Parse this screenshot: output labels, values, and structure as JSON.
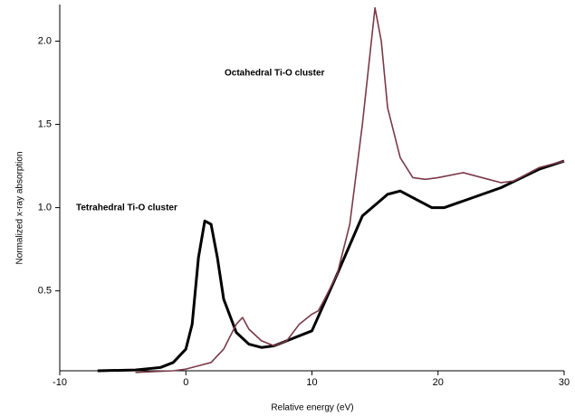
{
  "chart_data": {
    "type": "line",
    "x_label": "Relative energy (eV)",
    "y_label": "Normalized x-ray absorption",
    "annotations": [
      "Octahedral Ti-O cluster",
      "Tetrahedral Ti-O cluster"
    ],
    "xlim": [
      -10,
      30
    ],
    "xticks": [
      -10,
      0,
      10,
      20,
      30
    ],
    "ylim": [
      0.02,
      2.22
    ],
    "yticks": [
      0.5,
      {
        "value": 1,
        "label": "1.0"
      },
      1.5,
      {
        "value": 2,
        "label": "2.0"
      }
    ],
    "series": [
      {
        "color": "#000000",
        "x": [
          -7,
          -4,
          -2,
          -1,
          0,
          0.5,
          1,
          1.5,
          2,
          2.5,
          3,
          4,
          5,
          6,
          7,
          8,
          10,
          12,
          14,
          16,
          17,
          18,
          19.5,
          20.5,
          22,
          25,
          28,
          30
        ],
        "values": [
          0.02,
          0.025,
          0.04,
          0.07,
          0.15,
          0.3,
          0.7,
          0.92,
          0.9,
          0.7,
          0.45,
          0.25,
          0.18,
          0.16,
          0.17,
          0.2,
          0.26,
          0.6,
          0.95,
          1.08,
          1.1,
          1.06,
          1.0,
          1.0,
          1.04,
          1.12,
          1.23,
          1.28
        ]
      },
      {
        "color": "#7a3a4a",
        "x": [
          -4,
          -1,
          0,
          1,
          2,
          3,
          4,
          4.5,
          5,
          6,
          7,
          8,
          9,
          10,
          10.5,
          11,
          12,
          13,
          14,
          15,
          15.5,
          16,
          17,
          18,
          19,
          20,
          22,
          24,
          25,
          26,
          28,
          30
        ],
        "values": [
          0.01,
          0.02,
          0.03,
          0.05,
          0.07,
          0.15,
          0.3,
          0.34,
          0.27,
          0.2,
          0.17,
          0.2,
          0.3,
          0.36,
          0.38,
          0.45,
          0.6,
          0.9,
          1.5,
          2.2,
          2.0,
          1.6,
          1.3,
          1.18,
          1.17,
          1.18,
          1.21,
          1.17,
          1.15,
          1.16,
          1.24,
          1.28
        ]
      }
    ]
  }
}
